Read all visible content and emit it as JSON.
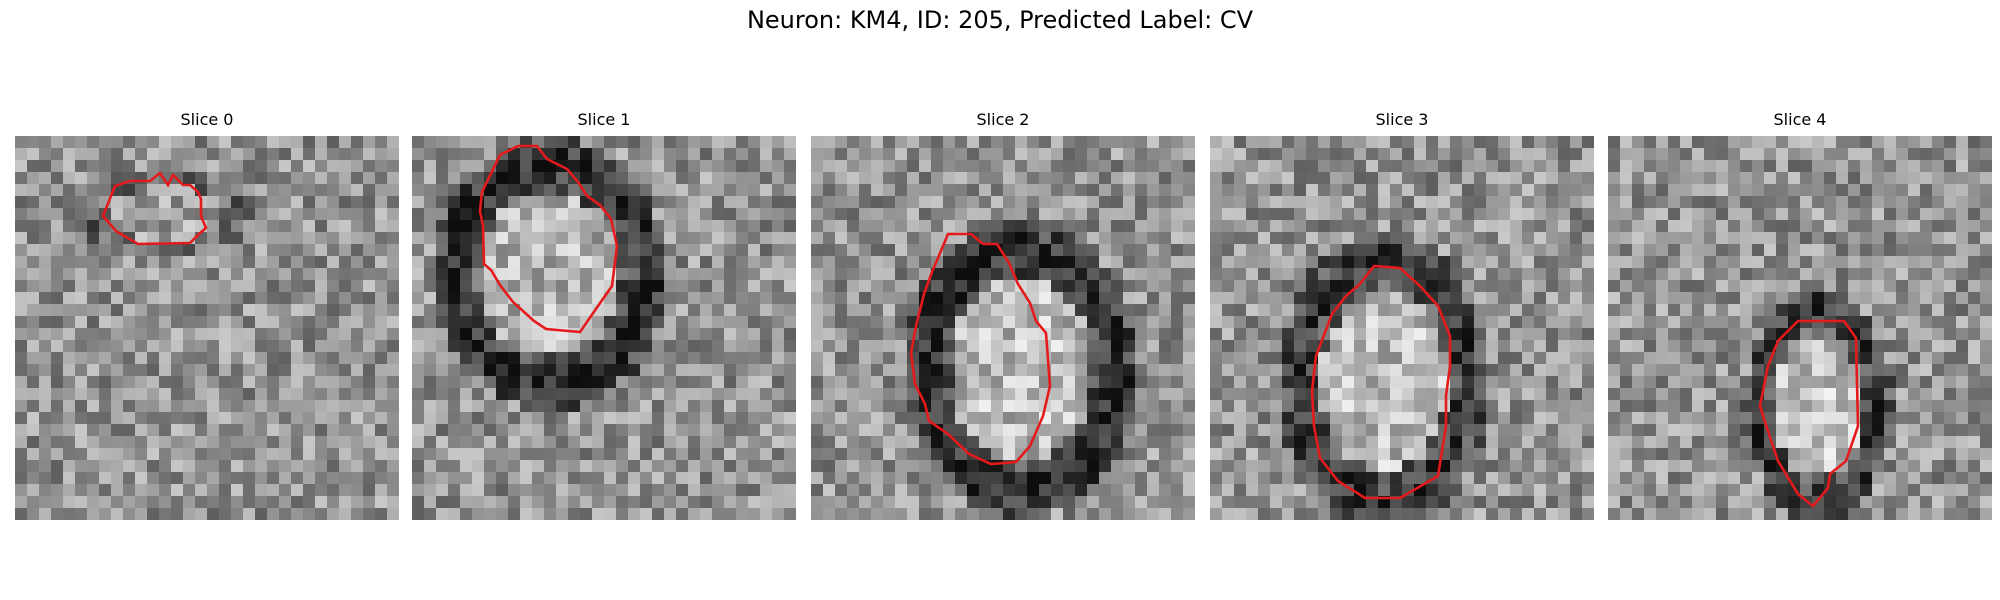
{
  "figure": {
    "title": "Neuron: KM4, ID: 205, Predicted Label: CV"
  },
  "panels": [
    {
      "title": "Slice 0"
    },
    {
      "title": "Slice 1"
    },
    {
      "title": "Slice 2"
    },
    {
      "title": "Slice 3"
    },
    {
      "title": "Slice 4"
    }
  ],
  "colors": {
    "contour": "#e41a1c",
    "background": "#ffffff"
  }
}
